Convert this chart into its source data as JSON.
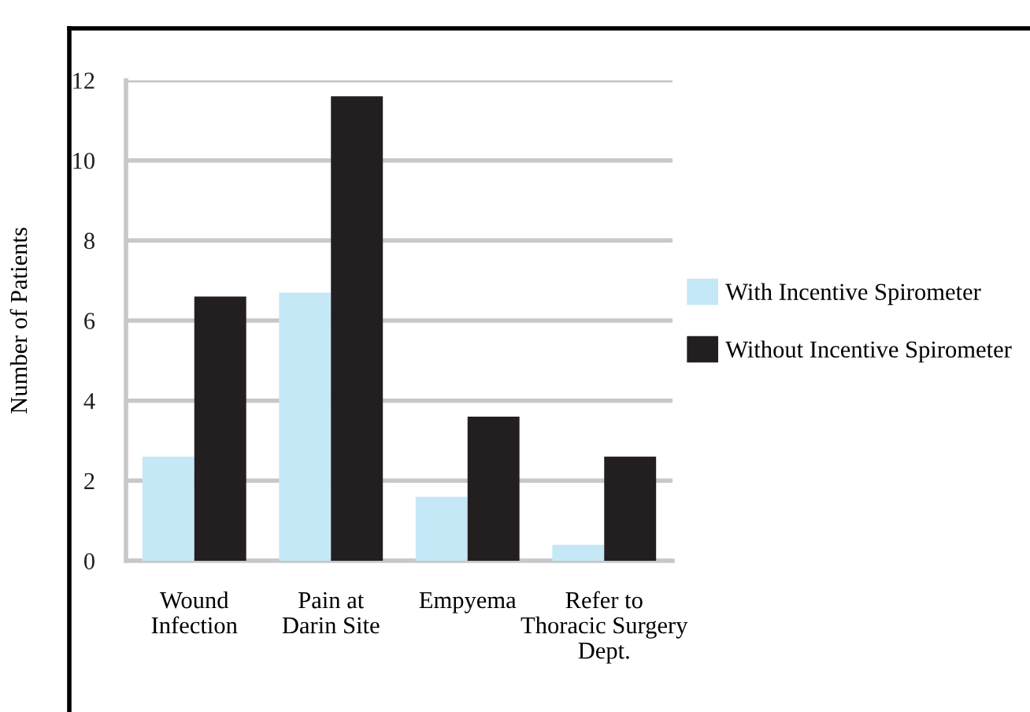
{
  "chart_data": {
    "type": "bar",
    "ylabel": "Number of Patients",
    "categories": [
      "Wound\nInfection",
      "Pain at\nDarin Site",
      "Empyema",
      "Refer to\nThoracic Surgery\nDept."
    ],
    "series": [
      {
        "name": "With Incentive Spirometer",
        "color": "#c5e8f7",
        "values": [
          2.6,
          6.7,
          1.6,
          0.4
        ]
      },
      {
        "name": "Without Incentive Spirometer",
        "color": "#231f20",
        "values": [
          6.6,
          11.6,
          3.6,
          2.6
        ]
      }
    ],
    "ylim": [
      0,
      12
    ],
    "yticks": [
      0,
      2,
      4,
      6,
      8,
      10,
      12
    ],
    "grid": "y",
    "legend": "right"
  }
}
